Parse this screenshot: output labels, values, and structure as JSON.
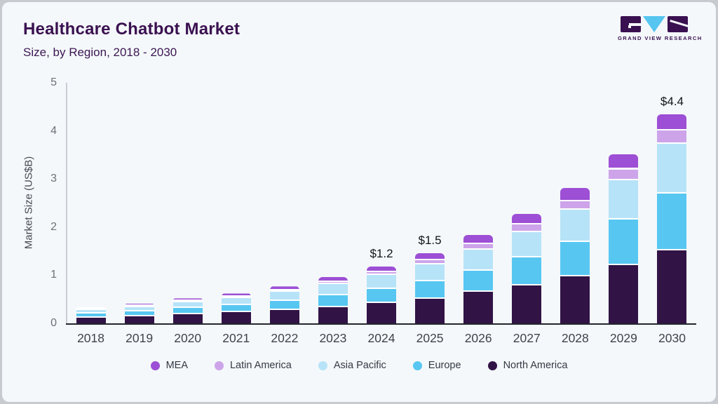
{
  "header": {
    "title": "Healthcare Chatbot Market",
    "subtitle": "Size, by Region, 2018 - 2030"
  },
  "logo": {
    "text": "GRAND VIEW RESEARCH"
  },
  "colors": {
    "frame_bg": "#c7cbcf",
    "card_bg": "#f4f8fa",
    "title_text": "#3a1150",
    "axis_line": "#c9ced6",
    "baseline": "#23272e",
    "tick_text": "#6d7177",
    "year_text": "#3f444c",
    "annotation_text": "#101318",
    "legend_text": "#343a45",
    "logo_blue": "#56c5f0",
    "logo_purple": "#3a1150"
  },
  "chart_data": {
    "type": "bar",
    "stacked": true,
    "title": "Healthcare Chatbot Market",
    "subtitle": "Size, by Region, 2018 - 2030",
    "xlabel": "",
    "ylabel": "Market Size (US$B)",
    "ylim": [
      0,
      5
    ],
    "yticks": [
      0,
      1,
      2,
      3,
      4,
      5
    ],
    "grid": false,
    "legend_position": "bottom",
    "categories": [
      "2018",
      "2019",
      "2020",
      "2021",
      "2022",
      "2023",
      "2024",
      "2025",
      "2026",
      "2027",
      "2028",
      "2029",
      "2030"
    ],
    "stack_order": "bottom-to-top",
    "series": [
      {
        "name": "North America",
        "color": "#311346",
        "values": [
          0.12,
          0.15,
          0.19,
          0.23,
          0.28,
          0.34,
          0.43,
          0.51,
          0.65,
          0.79,
          0.98,
          1.21,
          1.51
        ]
      },
      {
        "name": "Europe",
        "color": "#57c7f2",
        "values": [
          0.08,
          0.1,
          0.13,
          0.15,
          0.19,
          0.24,
          0.29,
          0.37,
          0.45,
          0.58,
          0.71,
          0.95,
          1.18
        ]
      },
      {
        "name": "Asia Pacific",
        "color": "#b7e3f8",
        "values": [
          0.08,
          0.09,
          0.12,
          0.14,
          0.18,
          0.23,
          0.28,
          0.35,
          0.43,
          0.53,
          0.67,
          0.81,
          1.04
        ]
      },
      {
        "name": "Latin America",
        "color": "#cda4ea",
        "values": [
          0.02,
          0.02,
          0.03,
          0.03,
          0.04,
          0.05,
          0.06,
          0.08,
          0.12,
          0.15,
          0.18,
          0.23,
          0.28
        ]
      },
      {
        "name": "MEA",
        "color": "#9d4fd5",
        "values": [
          0.03,
          0.05,
          0.05,
          0.07,
          0.08,
          0.1,
          0.12,
          0.15,
          0.19,
          0.22,
          0.28,
          0.31,
          0.34
        ]
      }
    ],
    "legend_order": [
      "MEA",
      "Latin America",
      "Asia Pacific",
      "Europe",
      "North America"
    ],
    "annotations": [
      null,
      null,
      null,
      null,
      null,
      null,
      "$1.2",
      "$1.5",
      null,
      null,
      null,
      null,
      "$4.4"
    ],
    "annotated_totals": {
      "2024": "$1.2",
      "2025": "$1.5",
      "2030": "$4.4"
    }
  }
}
